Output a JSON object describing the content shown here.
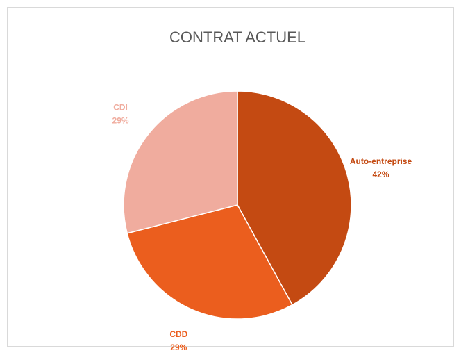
{
  "chart_data": {
    "type": "pie",
    "title": "CONTRAT ACTUEL",
    "categories": [
      "Auto-entreprise",
      "CDD",
      "CDI"
    ],
    "values": [
      42,
      29,
      29
    ],
    "value_labels": [
      "42%",
      "29%",
      "29%"
    ],
    "colors": [
      "#c44a12",
      "#eb5e1e",
      "#f0ac9e"
    ]
  }
}
